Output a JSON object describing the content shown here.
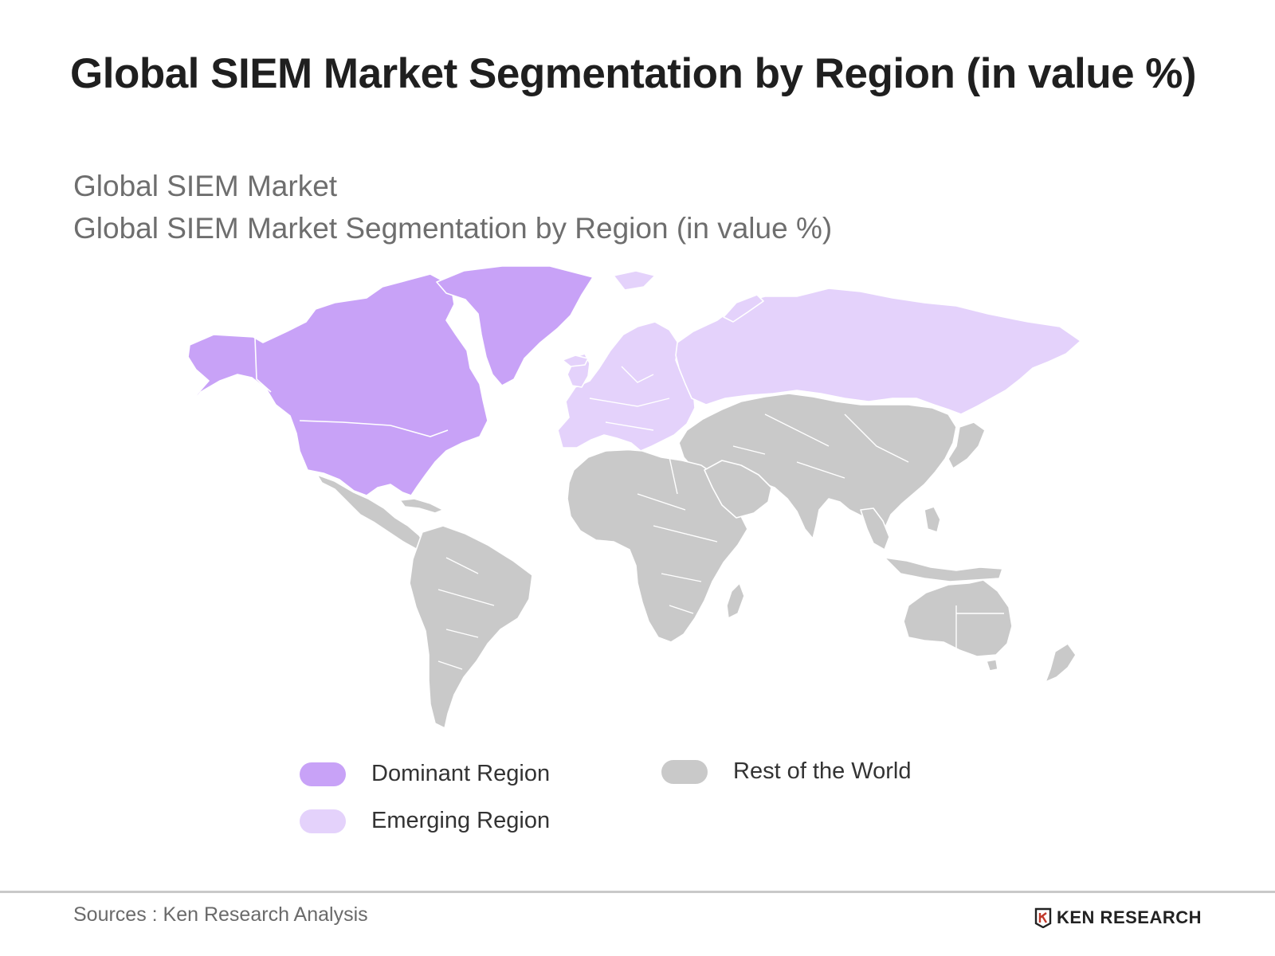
{
  "title": "Global SIEM Market Segmentation by Region (in value %)",
  "subtitle_1": "Global SIEM Market",
  "subtitle_2": "Global SIEM Market Segmentation by Region (in value %)",
  "colors": {
    "dominant": "#c8a2f7",
    "emerging": "#e4d2fb",
    "rest": "#c9c9c9"
  },
  "map": {
    "regions": [
      {
        "name": "North America",
        "category": "dominant"
      },
      {
        "name": "Greenland",
        "category": "dominant"
      },
      {
        "name": "Europe",
        "category": "emerging"
      },
      {
        "name": "Russia",
        "category": "emerging"
      },
      {
        "name": "Latin America",
        "category": "rest"
      },
      {
        "name": "Africa",
        "category": "rest"
      },
      {
        "name": "Asia",
        "category": "rest"
      },
      {
        "name": "Oceania",
        "category": "rest"
      }
    ]
  },
  "legend": {
    "dominant_label": "Dominant Region",
    "emerging_label": "Emerging Region",
    "rest_label": "Rest of the World"
  },
  "footer": {
    "source": "Sources : Ken Research Analysis",
    "brand": "KEN RESEARCH",
    "brand_icon": "ken-research-logo-icon"
  }
}
